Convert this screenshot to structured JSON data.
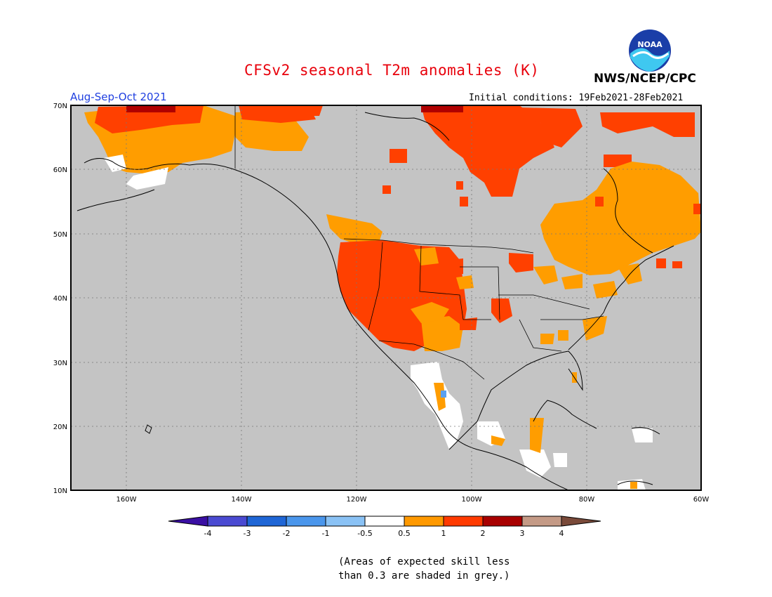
{
  "title": "CFSv2 seasonal T2m anomalies (K)",
  "agency": "NWS/NCEP/CPC",
  "logo_text": "NOAA",
  "season": "Aug-Sep-Oct 2021",
  "initial_conditions": "Initial conditions: 19Feb2021-28Feb2021",
  "lat_labels": [
    "70N",
    "60N",
    "50N",
    "40N",
    "30N",
    "20N",
    "10N"
  ],
  "lon_labels": [
    "160W",
    "140W",
    "120W",
    "100W",
    "80W",
    "60W"
  ],
  "colorbar": {
    "tick_labels": [
      "-4",
      "-3",
      "-2",
      "-1",
      "-0.5",
      "0.5",
      "1",
      "2",
      "3",
      "4"
    ],
    "colors": [
      "#3a0fa3",
      "#4a4ad2",
      "#1f66d6",
      "#4a96ec",
      "#8ac2f5",
      "#ffffff",
      "#ff9900",
      "#ff3a00",
      "#a80000",
      "#c49a86",
      "#7a4a3a"
    ]
  },
  "note_lines": [
    "(Areas of expected skill less",
    "than 0.3 are shaded in grey.)"
  ],
  "colors": {
    "grey_mask": "#c4c4c4",
    "anom_0_5_to_1": "#ff9d00",
    "anom_1_to_2": "#ff4000",
    "anom_2_to_3": "#b00000",
    "anom_neg": "#5aa0f0",
    "neutral": "#ffffff"
  }
}
